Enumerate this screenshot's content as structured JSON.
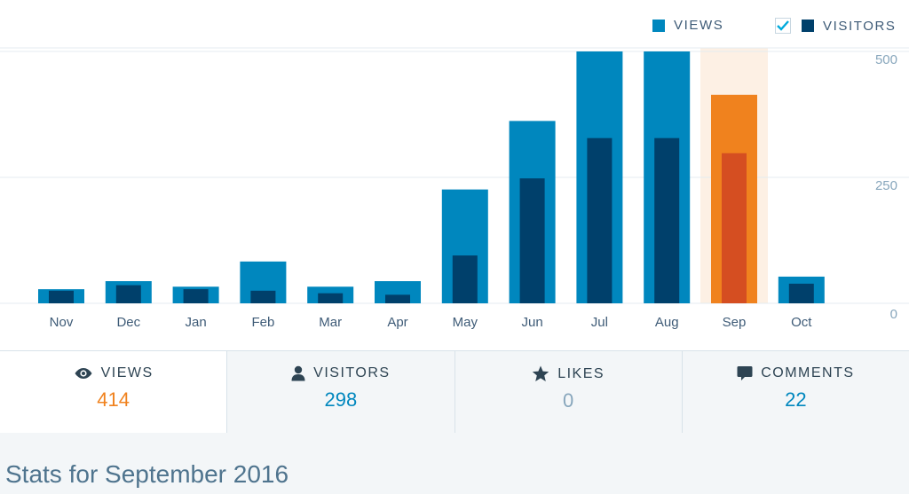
{
  "legend": {
    "views_label": "VIEWS",
    "visitors_label": "VISITORS",
    "visitors_checked": true
  },
  "colors": {
    "views": "#0087be",
    "visitors": "#00406b",
    "selected_views": "#f0821e",
    "selected_visitors": "#d54e21",
    "selected_bg": "#fdf0e4",
    "grid": "#e4ebf0",
    "axis_text": "#3e5b77",
    "tick_text": "#87a6bc"
  },
  "chart_data": {
    "type": "bar",
    "categories": [
      "Nov",
      "Dec",
      "Jan",
      "Feb",
      "Mar",
      "Apr",
      "May",
      "Jun",
      "Jul",
      "Aug",
      "Sep",
      "Oct"
    ],
    "series": [
      {
        "name": "VIEWS",
        "values": [
          28,
          44,
          33,
          83,
          33,
          44,
          226,
          362,
          500,
          500,
          414,
          53
        ]
      },
      {
        "name": "VISITORS",
        "values": [
          25,
          36,
          28,
          25,
          20,
          17,
          95,
          248,
          328,
          328,
          298,
          39
        ]
      }
    ],
    "ylim": [
      0,
      500
    ],
    "yticks": [
      0,
      250,
      500
    ],
    "selected_category": "Sep",
    "grid": true
  },
  "tabs": [
    {
      "label": "VIEWS",
      "value": "414",
      "icon": "eye-icon"
    },
    {
      "label": "VISITORS",
      "value": "298",
      "icon": "person-icon"
    },
    {
      "label": "LIKES",
      "value": "0",
      "icon": "star-icon"
    },
    {
      "label": "COMMENTS",
      "value": "22",
      "icon": "comment-icon"
    }
  ],
  "footer": {
    "title": "Stats for September 2016"
  }
}
